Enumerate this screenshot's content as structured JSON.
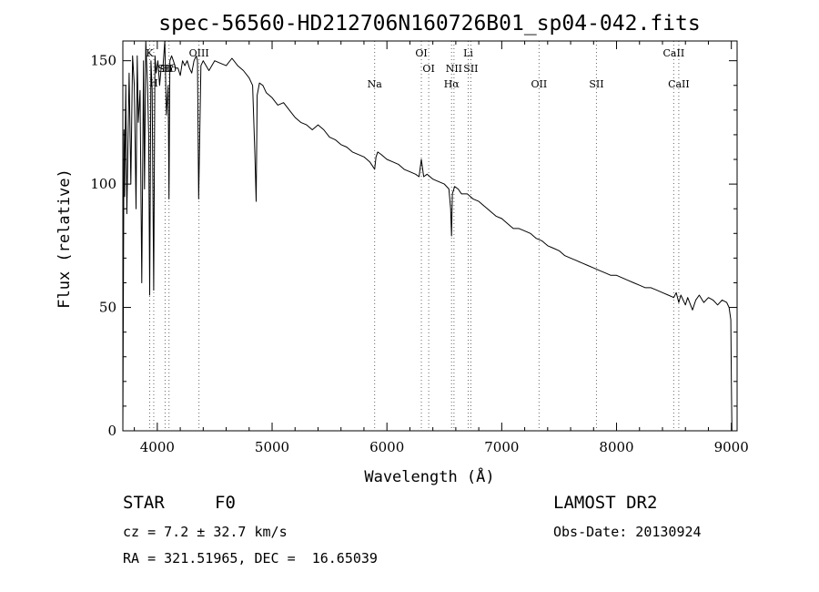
{
  "chart_data": {
    "type": "line",
    "title": "spec-56560-HD212706N160726B01_sp04-042.fits",
    "xlabel": "Wavelength (Å)",
    "ylabel": "Flux (relative)",
    "xlim": [
      3700,
      9050
    ],
    "ylim": [
      0,
      158
    ],
    "xticks": [
      4000,
      5000,
      6000,
      7000,
      8000,
      9000
    ],
    "yticks": [
      0,
      50,
      100,
      150
    ],
    "grid": false,
    "line_color": "#000000",
    "line_markers": [
      {
        "label": "Hδ",
        "wavelength": 4102,
        "row": "upper"
      },
      {
        "label": "K",
        "wavelength": 3934,
        "row": "top"
      },
      {
        "label": "H",
        "wavelength": 3969,
        "row": "middle"
      },
      {
        "label": "SII",
        "wavelength": 4068,
        "row": "upper"
      },
      {
        "label": "OIII",
        "wavelength": 4363,
        "row": "top"
      },
      {
        "label": "Na",
        "wavelength": 5893,
        "row": "lower"
      },
      {
        "label": "OI",
        "wavelength": 6300,
        "row": "top"
      },
      {
        "label": "OI",
        "wavelength": 6364,
        "row": "upper"
      },
      {
        "label": "Li",
        "wavelength": 6708,
        "row": "top"
      },
      {
        "label": "NII",
        "wavelength": 6584,
        "row": "upper"
      },
      {
        "label": "SII",
        "wavelength": 6731,
        "row": "upper"
      },
      {
        "label": "Hα",
        "wavelength": 6563,
        "row": "lower"
      },
      {
        "label": "OII",
        "wavelength": 7325,
        "row": "lower"
      },
      {
        "label": "SII",
        "wavelength": 7825,
        "row": "lower"
      },
      {
        "label": "CaII",
        "wavelength": 8498,
        "row": "top"
      },
      {
        "label": "CaII",
        "wavelength": 8542,
        "row": "lower"
      }
    ],
    "series": [
      {
        "x": [
          3700,
          3710,
          3715,
          3725,
          3735,
          3745,
          3755,
          3770,
          3785,
          3800,
          3815,
          3825,
          3835,
          3850,
          3865,
          3880,
          3889,
          3900,
          3915,
          3925,
          3934,
          3945,
          3955,
          3969,
          3980,
          3990,
          4005,
          4020,
          4035,
          4050,
          4065,
          4080,
          4095,
          4102,
          4110,
          4125,
          4140,
          4160,
          4180,
          4200,
          4220,
          4240,
          4260,
          4280,
          4300,
          4320,
          4340,
          4350,
          4360,
          4380,
          4400,
          4450,
          4500,
          4550,
          4600,
          4650,
          4700,
          4750,
          4800,
          4830,
          4850,
          4861,
          4870,
          4890,
          4920,
          4950,
          5000,
          5050,
          5100,
          5150,
          5200,
          5250,
          5300,
          5350,
          5400,
          5450,
          5500,
          5550,
          5600,
          5650,
          5700,
          5750,
          5800,
          5850,
          5880,
          5893,
          5905,
          5920,
          5950,
          6000,
          6050,
          6100,
          6150,
          6200,
          6250,
          6280,
          6300,
          6320,
          6350,
          6400,
          6450,
          6500,
          6540,
          6555,
          6563,
          6570,
          6590,
          6620,
          6650,
          6700,
          6750,
          6800,
          6850,
          6900,
          6950,
          7000,
          7050,
          7100,
          7150,
          7200,
          7250,
          7300,
          7350,
          7400,
          7450,
          7500,
          7550,
          7600,
          7650,
          7700,
          7750,
          7800,
          7850,
          7900,
          7950,
          8000,
          8050,
          8100,
          8150,
          8200,
          8250,
          8300,
          8350,
          8400,
          8450,
          8498,
          8520,
          8542,
          8560,
          8600,
          8620,
          8662,
          8690,
          8720,
          8760,
          8800,
          8840,
          8880,
          8920,
          8960,
          8980,
          8995,
          9000,
          9005
        ],
        "y": [
          0,
          122,
          95,
          140,
          88,
          118,
          145,
          100,
          152,
          140,
          90,
          152,
          125,
          138,
          60,
          150,
          98,
          158,
          140,
          120,
          55,
          150,
          138,
          57,
          152,
          145,
          150,
          140,
          148,
          148,
          158,
          128,
          140,
          94,
          150,
          152,
          150,
          147,
          147,
          144,
          150,
          148,
          150,
          147,
          145,
          150,
          152,
          150,
          94,
          148,
          150,
          146,
          150,
          149,
          148,
          151,
          148,
          146,
          143,
          140,
          112,
          93,
          136,
          141,
          140,
          137,
          135,
          132,
          133,
          130,
          127,
          125,
          124,
          122,
          124,
          122,
          119,
          118,
          116,
          115,
          113,
          112,
          111,
          109,
          107,
          106,
          111,
          113,
          112,
          110,
          109,
          108,
          106,
          105,
          104,
          103,
          110,
          103,
          104,
          102,
          101,
          100,
          98,
          90,
          79,
          96,
          99,
          98,
          96,
          96,
          94,
          93,
          91,
          89,
          87,
          86,
          84,
          82,
          82,
          81,
          80,
          78,
          77,
          75,
          74,
          73,
          71,
          70,
          69,
          68,
          67,
          66,
          65,
          64,
          63,
          63,
          62,
          61,
          60,
          59,
          58,
          58,
          57,
          56,
          55,
          54,
          56,
          52,
          55,
          51,
          54,
          49,
          53,
          55,
          52,
          54,
          53,
          51,
          53,
          52,
          50,
          45,
          20,
          0
        ]
      }
    ]
  },
  "info": {
    "object_type": "STAR",
    "spectral_class": "F0",
    "survey": "LAMOST DR2",
    "redshift": "cz = 7.2 ± 32.7 km/s",
    "obs_date": "Obs-Date: 20130924",
    "coordinates": "RA = 321.51965, DEC =  16.65039"
  }
}
